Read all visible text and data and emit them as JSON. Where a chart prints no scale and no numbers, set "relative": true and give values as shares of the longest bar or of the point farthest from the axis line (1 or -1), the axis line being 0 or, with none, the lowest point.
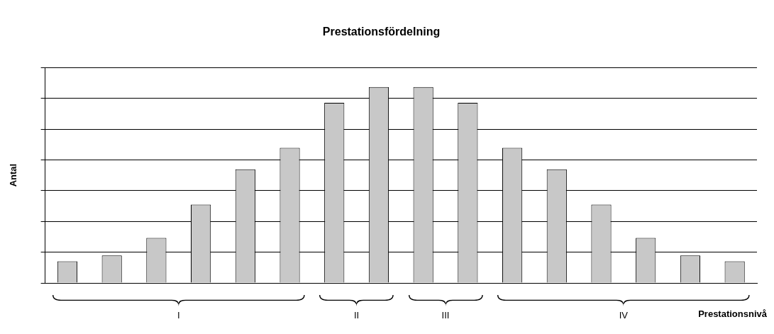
{
  "chart_data": {
    "type": "bar",
    "title": "Prestationsfördelning",
    "xlabel": "Prestationsnivå",
    "ylabel": "Antal",
    "relative": true,
    "grid": "y",
    "legend": false,
    "categories": [
      null,
      null,
      null,
      null,
      null,
      null,
      null,
      null,
      null,
      null,
      null,
      null,
      null,
      null,
      null,
      null
    ],
    "values": [
      0.11,
      0.14,
      0.23,
      0.4,
      0.58,
      0.69,
      0.92,
      1,
      1,
      0.92,
      0.69,
      0.58,
      0.4,
      0.23,
      0.14,
      0.11
    ],
    "color": "#c8c8c8",
    "annotations": [
      "I",
      "II",
      "III",
      "IV"
    ]
  }
}
